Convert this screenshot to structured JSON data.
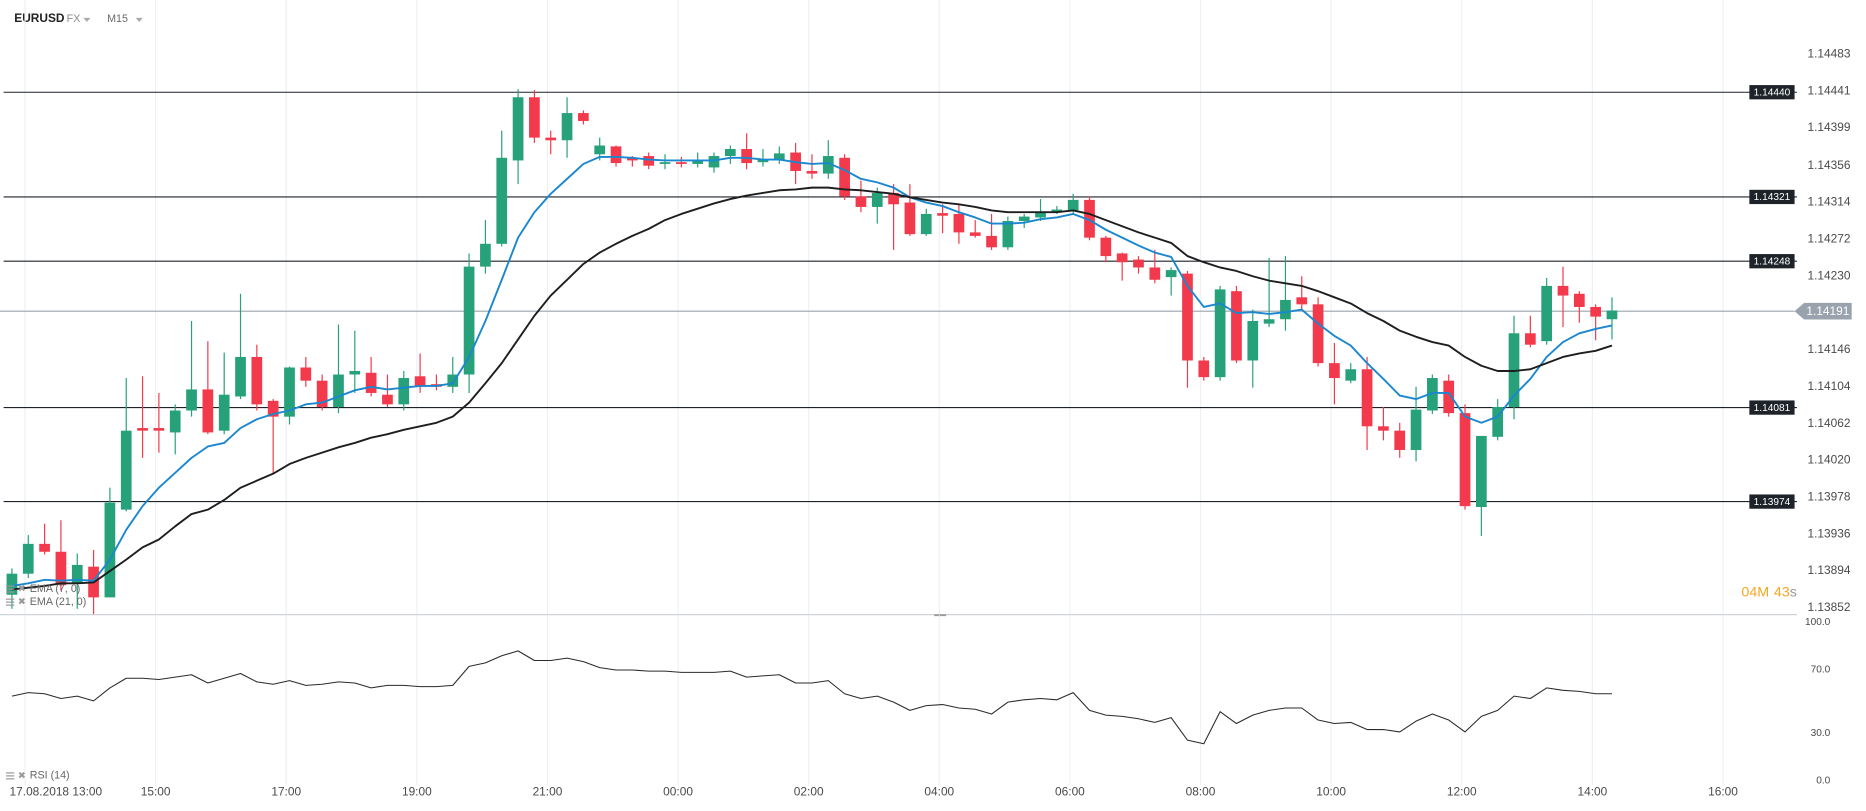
{
  "header": {
    "symbol": "EURUSD",
    "market": "FX",
    "interval": "M15",
    "timer": [
      "04",
      "M",
      "43",
      "s"
    ]
  },
  "chart_data": [
    {
      "type": "candlestick",
      "up_color": "#26a17a",
      "down_color": "#f23a4c",
      "grid": "x",
      "open": [
        1.13867,
        1.13891,
        1.13925,
        1.13916,
        1.1388,
        1.13899,
        1.13864,
        1.13964,
        1.14057,
        1.14057,
        1.14052,
        1.14077,
        1.14101,
        1.14054,
        1.14093,
        1.14138,
        1.14088,
        1.1407,
        1.14126,
        1.14111,
        1.14081,
        1.14118,
        1.1412,
        1.14095,
        1.14084,
        1.14116,
        1.14107,
        1.14104,
        1.14118,
        1.14241,
        1.14267,
        1.14362,
        1.14434,
        1.14388,
        1.14385,
        1.14416,
        1.14369,
        1.14378,
        1.14365,
        1.14367,
        1.14358,
        1.1436,
        1.14358,
        1.14354,
        1.14367,
        1.14375,
        1.1436,
        1.14363,
        1.14371,
        1.1435,
        1.14347,
        1.14365,
        1.14321,
        1.14309,
        1.14325,
        1.14314,
        1.14278,
        1.14302,
        1.14301,
        1.1428,
        1.14276,
        1.14263,
        1.14293,
        1.14297,
        1.14303,
        1.14305,
        1.14317,
        1.14274,
        1.14256,
        1.14249,
        1.1424,
        1.14229,
        1.14233,
        1.14134,
        1.14115,
        1.14213,
        1.14134,
        1.14176,
        1.14181,
        1.14206,
        1.14198,
        1.14131,
        1.14111,
        1.14124,
        1.14059,
        1.14054,
        1.14032,
        1.14077,
        1.14111,
        1.14074,
        1.13967,
        1.14047,
        1.14081,
        1.14165,
        1.14156,
        1.14219,
        1.1421,
        1.14195,
        1.14181
      ],
      "high": [
        1.13897,
        1.13935,
        1.13948,
        1.13952,
        1.13914,
        1.13918,
        1.13989,
        1.14114,
        1.14116,
        1.14097,
        1.14084,
        1.14179,
        1.14156,
        1.14143,
        1.1421,
        1.14152,
        1.1409,
        1.14127,
        1.14138,
        1.14118,
        1.14175,
        1.14168,
        1.14138,
        1.14118,
        1.14122,
        1.14142,
        1.14118,
        1.14138,
        1.14256,
        1.14294,
        1.14396,
        1.14443,
        1.14442,
        1.14396,
        1.14434,
        1.14419,
        1.14388,
        1.14379,
        1.14367,
        1.14371,
        1.14369,
        1.14366,
        1.14371,
        1.14371,
        1.14379,
        1.14393,
        1.14375,
        1.14378,
        1.14382,
        1.14369,
        1.14385,
        1.14369,
        1.14339,
        1.14331,
        1.14335,
        1.14335,
        1.14307,
        1.14312,
        1.14312,
        1.14294,
        1.14301,
        1.14298,
        1.14301,
        1.14318,
        1.1431,
        1.14324,
        1.14321,
        1.14276,
        1.14257,
        1.14253,
        1.1426,
        1.1424,
        1.14236,
        1.14138,
        1.14219,
        1.14219,
        1.14192,
        1.14251,
        1.14253,
        1.1423,
        1.14206,
        1.14154,
        1.14131,
        1.14138,
        1.14081,
        1.14063,
        1.14104,
        1.14118,
        1.14118,
        1.14084,
        1.14048,
        1.1409,
        1.14185,
        1.14185,
        1.14228,
        1.14241,
        1.14213,
        1.14198,
        1.14206
      ],
      "low": [
        1.13851,
        1.13886,
        1.13913,
        1.13872,
        1.13851,
        1.13845,
        1.13864,
        1.13962,
        1.14023,
        1.14029,
        1.14027,
        1.1407,
        1.1405,
        1.1405,
        1.1409,
        1.14077,
        1.14005,
        1.14061,
        1.14104,
        1.14077,
        1.14074,
        1.14097,
        1.14093,
        1.14081,
        1.14077,
        1.14097,
        1.141,
        1.14097,
        1.14097,
        1.14233,
        1.14264,
        1.14335,
        1.14382,
        1.14369,
        1.14365,
        1.14403,
        1.14362,
        1.14355,
        1.14355,
        1.14352,
        1.14352,
        1.14354,
        1.14354,
        1.14348,
        1.14358,
        1.14352,
        1.14355,
        1.14358,
        1.14335,
        1.14341,
        1.14341,
        1.14317,
        1.14303,
        1.1429,
        1.1426,
        1.14276,
        1.14276,
        1.14279,
        1.14267,
        1.14274,
        1.1426,
        1.1426,
        1.14285,
        1.14293,
        1.14301,
        1.14301,
        1.14271,
        1.14246,
        1.14225,
        1.14233,
        1.14222,
        1.14208,
        1.14103,
        1.14111,
        1.14111,
        1.14131,
        1.14103,
        1.14172,
        1.14168,
        1.14192,
        1.14127,
        1.14084,
        1.14108,
        1.14032,
        1.14043,
        1.14023,
        1.14019,
        1.14073,
        1.1407,
        1.13964,
        1.13934,
        1.14043,
        1.14067,
        1.14149,
        1.14152,
        1.14172,
        1.14177,
        1.14157,
        1.14158
      ],
      "close": [
        1.13891,
        1.13925,
        1.13916,
        1.13878,
        1.13901,
        1.13864,
        1.13972,
        1.14054,
        1.14054,
        1.14054,
        1.14077,
        1.14101,
        1.14052,
        1.14095,
        1.14138,
        1.14084,
        1.1407,
        1.14126,
        1.14111,
        1.14081,
        1.14118,
        1.14122,
        1.14097,
        1.14084,
        1.14114,
        1.14104,
        1.14104,
        1.14118,
        1.14241,
        1.14267,
        1.14365,
        1.14434,
        1.14388,
        1.14385,
        1.14416,
        1.14407,
        1.14379,
        1.14359,
        1.14362,
        1.14356,
        1.1436,
        1.14358,
        1.14362,
        1.14367,
        1.14375,
        1.14359,
        1.14363,
        1.1437,
        1.1435,
        1.14347,
        1.14367,
        1.14321,
        1.14309,
        1.14325,
        1.14312,
        1.14278,
        1.14301,
        1.14299,
        1.1428,
        1.14276,
        1.14263,
        1.14293,
        1.14298,
        1.14303,
        1.14306,
        1.14317,
        1.14274,
        1.14253,
        1.14246,
        1.1424,
        1.14226,
        1.14237,
        1.14134,
        1.14115,
        1.14215,
        1.14134,
        1.14179,
        1.14181,
        1.14203,
        1.14198,
        1.14131,
        1.14114,
        1.14124,
        1.14059,
        1.14054,
        1.14032,
        1.14078,
        1.14114,
        1.14074,
        1.13968,
        1.14048,
        1.14081,
        1.14165,
        1.14152,
        1.14219,
        1.14208,
        1.14195,
        1.14184,
        1.14191
      ],
      "series": [
        {
          "name": "EMA (7, 0)",
          "color": "#1b87cf",
          "values": [
            1.13877,
            1.1388,
            1.13884,
            1.13883,
            1.13884,
            1.13883,
            1.13907,
            1.13941,
            1.13968,
            1.13989,
            1.14006,
            1.14023,
            1.14036,
            1.1404,
            1.14057,
            1.14067,
            1.14073,
            1.14077,
            1.14084,
            1.14086,
            1.14093,
            1.141,
            1.14104,
            1.14101,
            1.14103,
            1.14105,
            1.14105,
            1.14108,
            1.14138,
            1.14179,
            1.14226,
            1.14274,
            1.14303,
            1.14324,
            1.14341,
            1.14358,
            1.14366,
            1.14366,
            1.14365,
            1.14363,
            1.14362,
            1.14362,
            1.14362,
            1.14362,
            1.14365,
            1.14365,
            1.14363,
            1.14363,
            1.1436,
            1.14358,
            1.14359,
            1.14351,
            1.14341,
            1.14337,
            1.14331,
            1.1432,
            1.14314,
            1.1431,
            1.14303,
            1.14297,
            1.1429,
            1.1429,
            1.14291,
            1.14295,
            1.14297,
            1.14301,
            1.14294,
            1.14283,
            1.14274,
            1.14265,
            1.14257,
            1.14252,
            1.14219,
            1.14195,
            1.14199,
            1.14188,
            1.14189,
            1.14187,
            1.14189,
            1.14192,
            1.14176,
            1.14162,
            1.14151,
            1.14131,
            1.14113,
            1.14094,
            1.1409,
            1.14097,
            1.14097,
            1.1407,
            1.14063,
            1.1407,
            1.14094,
            1.14113,
            1.14138,
            1.14155,
            1.14165,
            1.1417,
            1.14174
          ]
        },
        {
          "name": "EMA (21, 0)",
          "color": "#1e1e1e",
          "values": [
            1.13873,
            1.13875,
            1.13877,
            1.1388,
            1.1388,
            1.13881,
            1.13894,
            1.13907,
            1.13921,
            1.1393,
            1.13945,
            1.13959,
            1.13964,
            1.13975,
            1.13989,
            1.13997,
            1.14005,
            1.14016,
            1.14023,
            1.14029,
            1.14035,
            1.1404,
            1.14046,
            1.1405,
            1.14055,
            1.14059,
            1.14063,
            1.1407,
            1.14086,
            1.14108,
            1.14131,
            1.14158,
            1.14185,
            1.14208,
            1.14226,
            1.14244,
            1.14257,
            1.14267,
            1.14276,
            1.14284,
            1.14294,
            1.14301,
            1.14307,
            1.14313,
            1.14318,
            1.14322,
            1.14325,
            1.14328,
            1.14329,
            1.14331,
            1.14331,
            1.14329,
            1.14328,
            1.14326,
            1.14324,
            1.1432,
            1.14317,
            1.14314,
            1.14312,
            1.14309,
            1.14305,
            1.14303,
            1.14303,
            1.14303,
            1.14303,
            1.14305,
            1.14301,
            1.14294,
            1.14287,
            1.1428,
            1.14274,
            1.14268,
            1.14253,
            1.14246,
            1.1424,
            1.14236,
            1.1423,
            1.14225,
            1.14222,
            1.14219,
            1.14213,
            1.14206,
            1.14199,
            1.14188,
            1.14179,
            1.14168,
            1.14161,
            1.14155,
            1.14151,
            1.14138,
            1.14128,
            1.14122,
            1.14122,
            1.14124,
            1.14131,
            1.14138,
            1.14142,
            1.14145,
            1.14151
          ]
        }
      ],
      "levels": [
        {
          "value": 1.1444,
          "label": "1.14440"
        },
        {
          "value": 1.14321,
          "label": "1.14321"
        },
        {
          "value": 1.14248,
          "label": "1.14248"
        },
        {
          "value": 1.14081,
          "label": "1.14081"
        },
        {
          "value": 1.13974,
          "label": "1.13974"
        }
      ],
      "level_color": "#1e2329",
      "last_price": {
        "value": 1.14191,
        "label": "1.14191"
      },
      "last_price_color": "#9aa3ad",
      "ylim": [
        1.13845,
        1.14534
      ],
      "yticks": [
        1.14483,
        1.14441,
        1.14399,
        1.14356,
        1.14314,
        1.14272,
        {
          "value": 1.1423,
          "label": "1.14230"
        },
        1.14146,
        1.14104,
        1.14062,
        {
          "value": 1.1402,
          "label": "1.14020"
        },
        1.13978,
        1.13936,
        1.13894,
        1.13852
      ],
      "xlim": [
        -0.73,
        109.33
      ],
      "xticks": [
        {
          "value": 0.8,
          "label": "17.08.2018  13:00"
        },
        {
          "value": 8.8,
          "label": "15:00"
        },
        {
          "value": 16.8,
          "label": "17:00"
        },
        {
          "value": 24.8,
          "label": "19:00"
        },
        {
          "value": 32.8,
          "label": "21:00"
        },
        {
          "value": 40.8,
          "label": "00:00"
        },
        {
          "value": 48.8,
          "label": "02:00"
        },
        {
          "value": 56.8,
          "label": "04:00"
        },
        {
          "value": 64.8,
          "label": "06:00"
        },
        {
          "value": 72.8,
          "label": "08:00"
        },
        {
          "value": 80.8,
          "label": "10:00"
        },
        {
          "value": 88.8,
          "label": "12:00"
        },
        {
          "value": 96.8,
          "label": "14:00"
        },
        {
          "value": 104.8,
          "label": "16:00"
        }
      ]
    },
    {
      "type": "line",
      "name": "RSI (14)",
      "color": "#2b2b2b",
      "values": [
        53.4,
        55.6,
        54.9,
        51.9,
        53.4,
        50.4,
        58.6,
        64.7,
        64.7,
        63.9,
        65.4,
        66.9,
        61.7,
        64.7,
        67.7,
        62.4,
        60.9,
        63.2,
        60.2,
        60.9,
        62.4,
        61.7,
        58.6,
        60.2,
        60.2,
        59.4,
        59.4,
        60.2,
        72.2,
        74.4,
        78.9,
        82.0,
        75.9,
        75.9,
        77.4,
        75.2,
        71.4,
        69.9,
        69.9,
        69.2,
        69.2,
        68.4,
        68.4,
        68.4,
        69.2,
        65.4,
        66.2,
        66.9,
        61.7,
        61.7,
        63.2,
        54.9,
        51.9,
        53.4,
        49.6,
        44.4,
        47.4,
        48.1,
        45.9,
        45.1,
        42.1,
        49.6,
        51.1,
        51.9,
        51.1,
        55.6,
        44.4,
        41.4,
        40.6,
        39.1,
        36.8,
        39.8,
        25.6,
        23.3,
        43.6,
        36.1,
        41.4,
        44.4,
        45.9,
        45.9,
        38.3,
        36.1,
        36.8,
        32.3,
        32.3,
        30.8,
        37.6,
        42.1,
        38.3,
        30.8,
        40.6,
        44.4,
        53.4,
        51.9,
        58.6,
        57.1,
        56.4,
        54.9,
        54.9
      ],
      "ylim": [
        0,
        100
      ],
      "yticks": [
        {
          "value": 100,
          "label": "100.0"
        },
        {
          "value": 70,
          "label": "70.0"
        },
        {
          "value": 30,
          "label": "30.0"
        },
        {
          "value": 0,
          "label": "0.0"
        }
      ]
    }
  ]
}
